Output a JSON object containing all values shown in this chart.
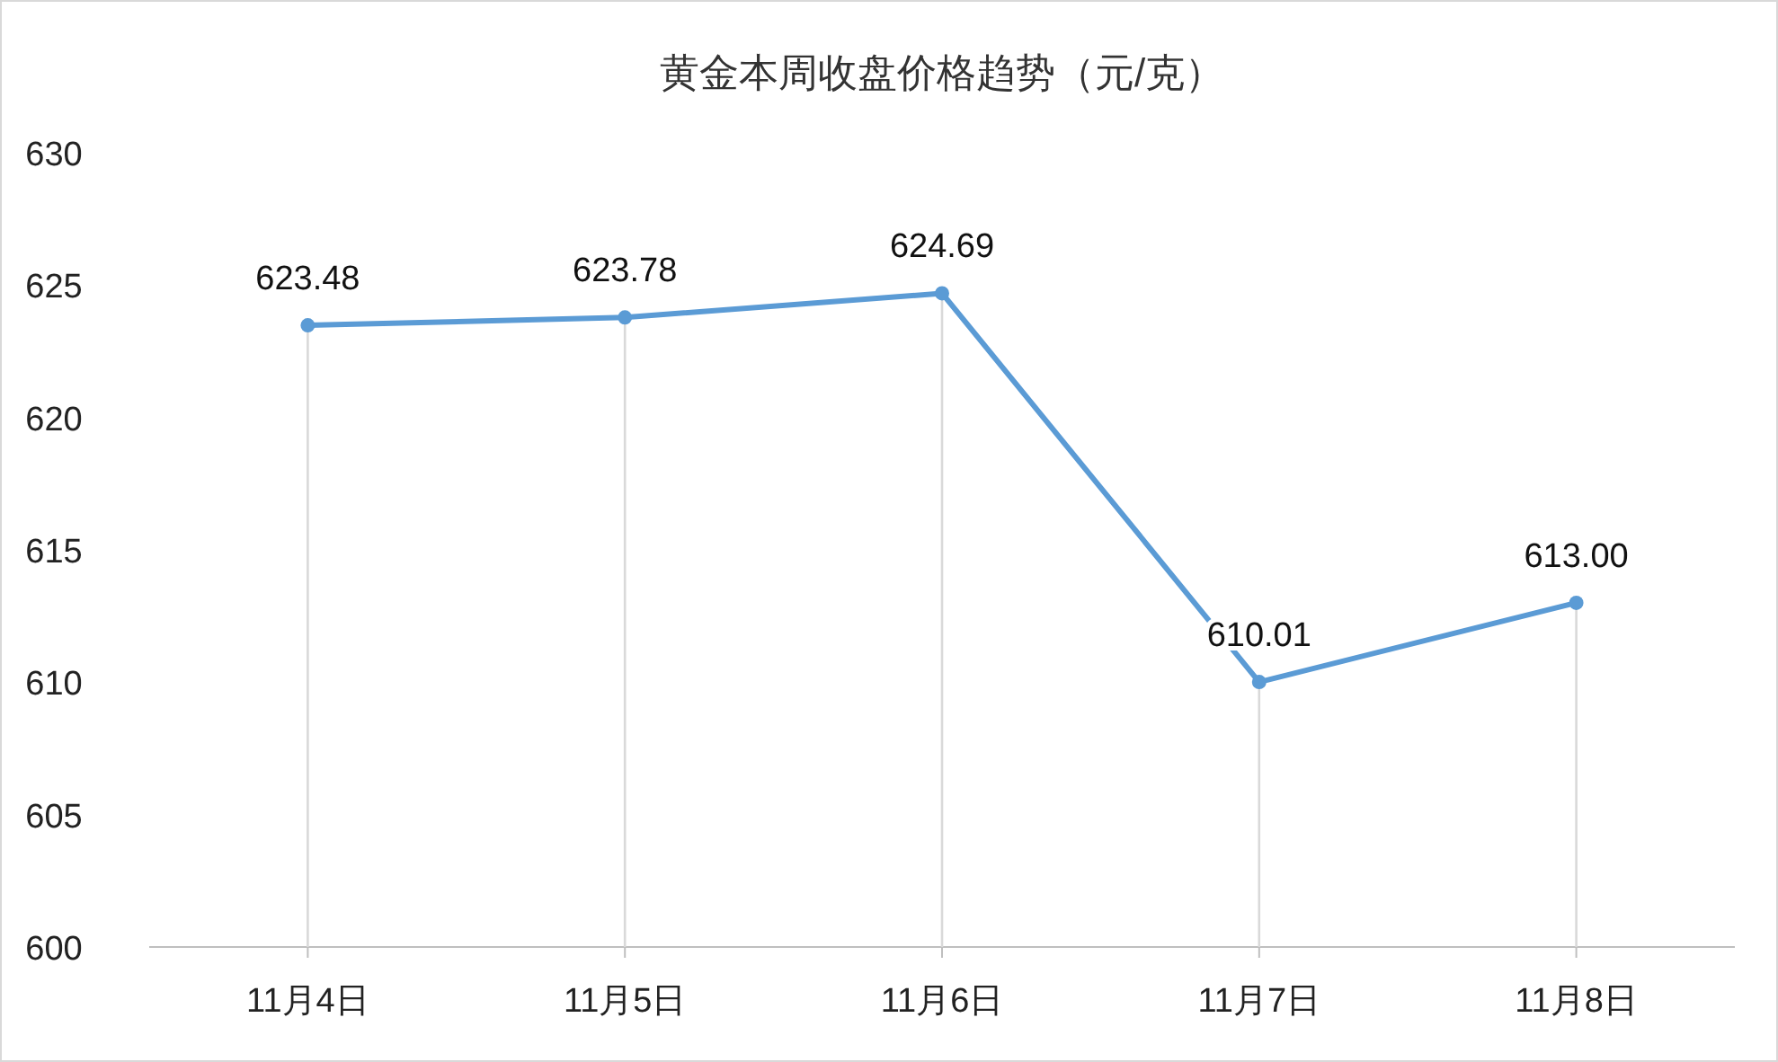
{
  "chart_data": {
    "type": "line",
    "title": "黄金本周收盘价格趋势（元/克）",
    "categories": [
      "11月4日",
      "11月5日",
      "11月6日",
      "11月7日",
      "11月8日"
    ],
    "series": [
      {
        "color": "#5b9bd5",
        "values": [
          623.48,
          623.78,
          624.69,
          610.01,
          613.0
        ],
        "value_labels": [
          "623.48",
          "623.78",
          "624.69",
          "610.01",
          "613.00"
        ]
      }
    ],
    "ylim": [
      600,
      630
    ],
    "yticks": [
      600,
      605,
      610,
      615,
      620,
      625,
      630
    ],
    "marker": "circle",
    "grid": "x"
  }
}
